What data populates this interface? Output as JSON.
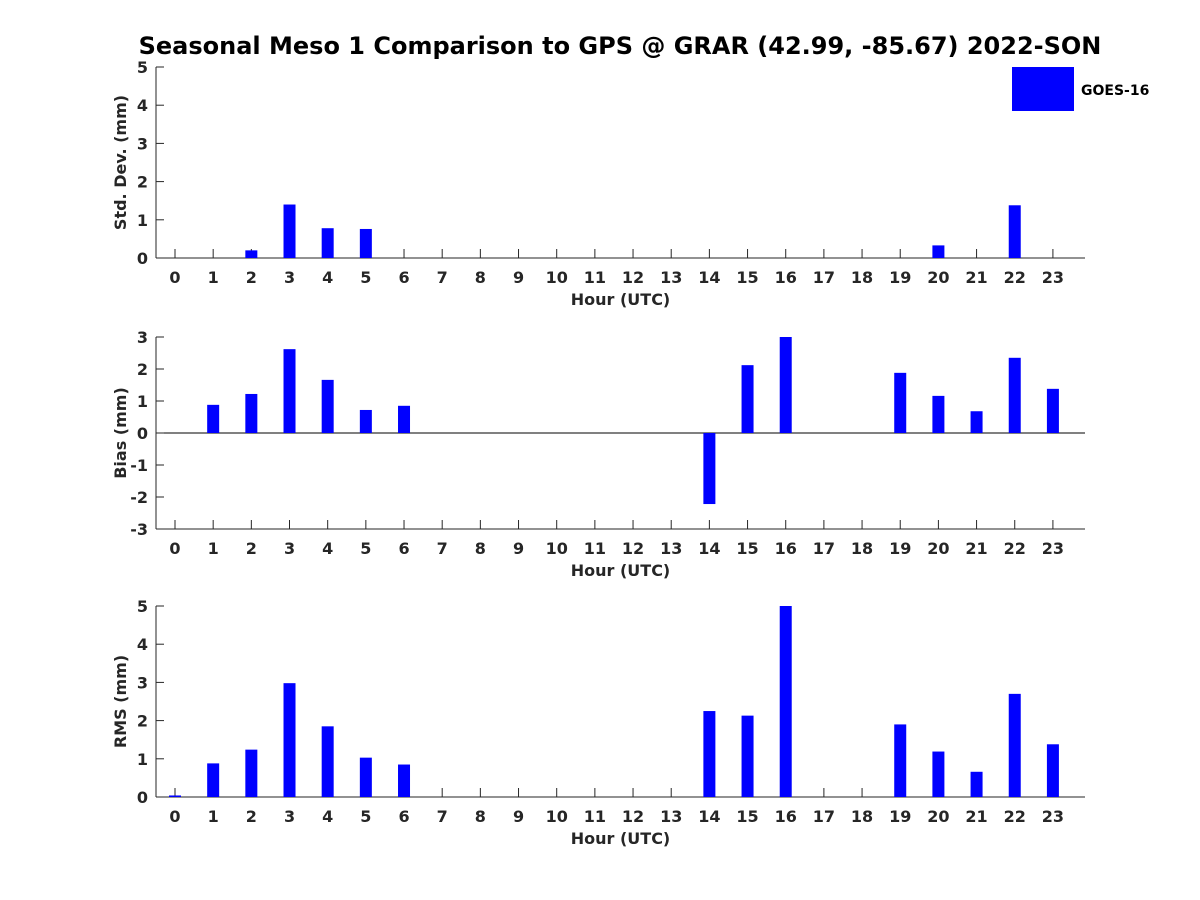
{
  "title": "Seasonal Meso 1 Comparison to GPS @ GRAR (42.99, -85.67) 2022-SON",
  "legend": {
    "label": "GOES-16",
    "color": "#0000ff",
    "placement": "top-right"
  },
  "chart_data": [
    {
      "type": "bar",
      "name": "std",
      "categories": [
        "0",
        "1",
        "2",
        "3",
        "4",
        "5",
        "6",
        "7",
        "8",
        "9",
        "10",
        "11",
        "12",
        "13",
        "14",
        "15",
        "16",
        "17",
        "18",
        "19",
        "20",
        "21",
        "22",
        "23"
      ],
      "values": [
        0,
        0,
        0.2,
        1.4,
        0.78,
        0.76,
        0,
        0,
        0,
        0,
        0,
        0,
        0,
        0,
        0,
        0,
        0,
        0,
        0,
        0,
        0.33,
        0,
        1.38,
        0
      ],
      "xlabel": "Hour (UTC)",
      "ylabel": "Std. Dev. (mm)",
      "ylim": [
        0,
        5
      ],
      "yticks": [
        0,
        1,
        2,
        3,
        4,
        5
      ],
      "grid": false
    },
    {
      "type": "bar",
      "name": "bias",
      "categories": [
        "0",
        "1",
        "2",
        "3",
        "4",
        "5",
        "6",
        "7",
        "8",
        "9",
        "10",
        "11",
        "12",
        "13",
        "14",
        "15",
        "16",
        "17",
        "18",
        "19",
        "20",
        "21",
        "22",
        "23"
      ],
      "values": [
        0,
        0.88,
        1.22,
        2.62,
        1.66,
        0.72,
        0.85,
        0,
        0,
        0,
        0,
        0,
        0,
        0,
        -2.22,
        2.12,
        3.0,
        0,
        0,
        1.88,
        1.16,
        0.68,
        2.35,
        1.38
      ],
      "xlabel": "Hour (UTC)",
      "ylabel": "Bias (mm)",
      "ylim": [
        -3,
        3
      ],
      "yticks": [
        -3,
        -2,
        -1,
        0,
        1,
        2,
        3
      ],
      "grid": false
    },
    {
      "type": "bar",
      "name": "rms",
      "categories": [
        "0",
        "1",
        "2",
        "3",
        "4",
        "5",
        "6",
        "7",
        "8",
        "9",
        "10",
        "11",
        "12",
        "13",
        "14",
        "15",
        "16",
        "17",
        "18",
        "19",
        "20",
        "21",
        "22",
        "23"
      ],
      "values": [
        0.04,
        0.88,
        1.24,
        2.98,
        1.85,
        1.03,
        0.85,
        0,
        0,
        0,
        0,
        0,
        0,
        0,
        2.25,
        2.13,
        5.0,
        0,
        0,
        1.9,
        1.19,
        0.66,
        2.7,
        1.38
      ],
      "xlabel": "Hour (UTC)",
      "ylabel": "RMS (mm)",
      "ylim": [
        0,
        5
      ],
      "yticks": [
        0,
        1,
        2,
        3,
        4,
        5
      ],
      "grid": false
    }
  ]
}
